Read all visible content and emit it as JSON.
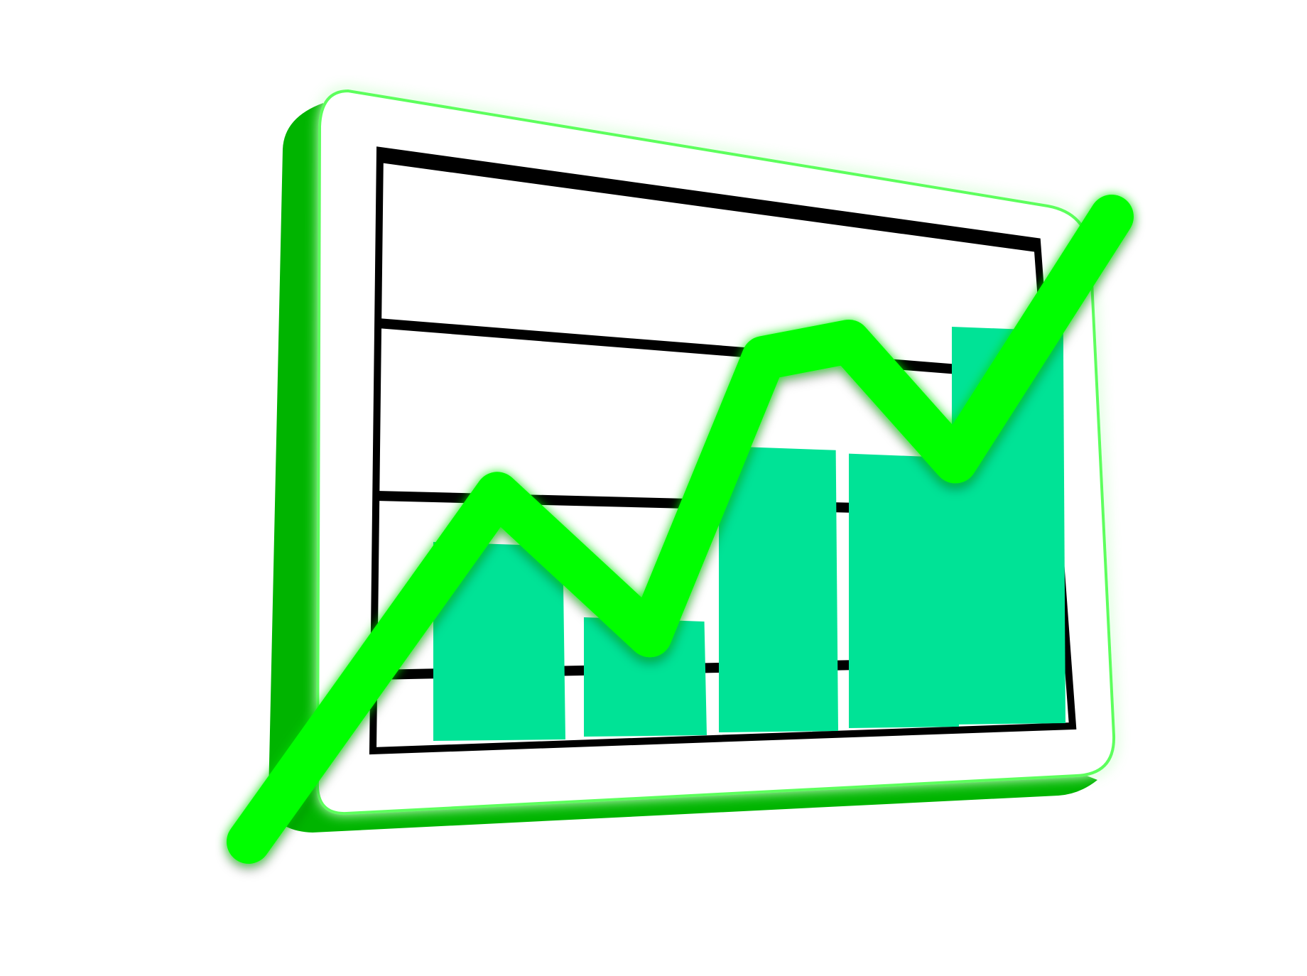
{
  "illustration": {
    "subject": "chart-icon-illustration",
    "chart_data": {
      "type": "bar",
      "bars": [
        {
          "value": 50
        },
        {
          "value": 30
        },
        {
          "value": 72
        },
        {
          "value": 69
        },
        {
          "value": 100
        }
      ],
      "trend_line": [
        0,
        64,
        38,
        89,
        92,
        70,
        115
      ]
    },
    "colors": {
      "frame_face": "#ffffff",
      "frame_side": "#00b400",
      "frame_glow": "#5dff5d",
      "bar_fill": "#00e396",
      "trend_line": "#00ff00",
      "grid": "#000000"
    }
  }
}
